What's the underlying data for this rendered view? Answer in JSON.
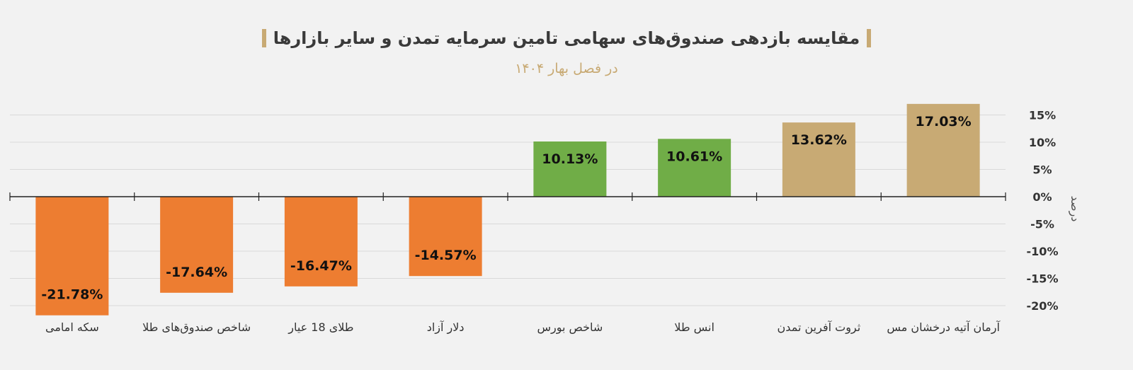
{
  "colors": {
    "background": "#f2f2f2",
    "title_bar": "#c8aa74",
    "subtitle": "#c8aa74",
    "negative": "#ed7d31",
    "positive_green": "#70ad47",
    "positive_tan": "#c8aa74",
    "grid": "#d9d9d9",
    "axis": "#222222"
  },
  "chart_data": {
    "type": "bar",
    "title": "مقایسه بازدهی صندوق‌های سهامی تامین سرمایه تمدن و سایر بازارها",
    "subtitle": "در فصل بهار ۱۴۰۴",
    "ylabel": "درصد",
    "ylim": [
      -22,
      17.5
    ],
    "yticks": [
      {
        "value": 15,
        "label": "15%"
      },
      {
        "value": 10,
        "label": "10%"
      },
      {
        "value": 5,
        "label": "5%"
      },
      {
        "value": 0,
        "label": "0%"
      },
      {
        "value": -5,
        "label": "-5%"
      },
      {
        "value": -10,
        "label": "-10%"
      },
      {
        "value": -15,
        "label": "-15%"
      },
      {
        "value": -20,
        "label": "-20%"
      }
    ],
    "categories": [
      "سکه امامی",
      "شاخص صندوق‌های طلا",
      "طلای 18 عیار",
      "دلار آزاد",
      "شاخص بورس",
      "انس طلا",
      "ثروت آفرین تمدن",
      "آرمان آتیه درخشان مس"
    ],
    "values": [
      -21.78,
      -17.64,
      -16.47,
      -14.57,
      10.13,
      10.61,
      13.62,
      17.03
    ],
    "value_labels": [
      "-21.78%",
      "-17.64%",
      "-16.47%",
      "-14.57%",
      "10.13%",
      "10.61%",
      "13.62%",
      "17.03%"
    ],
    "bar_colors": [
      "negative",
      "negative",
      "negative",
      "negative",
      "positive_green",
      "positive_green",
      "positive_tan",
      "positive_tan"
    ],
    "grid": true
  }
}
